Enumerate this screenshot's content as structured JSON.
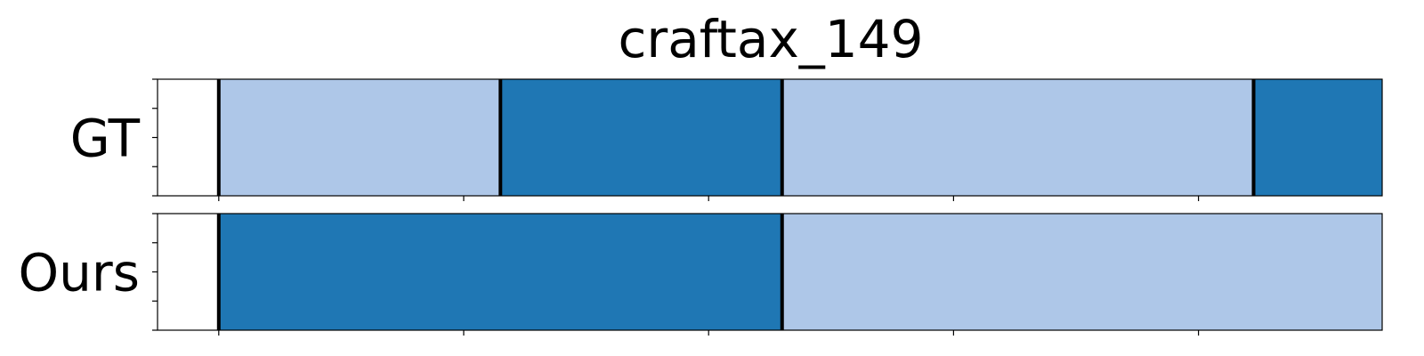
{
  "chart_data": {
    "type": "segmentation-timeline",
    "title": "craftax_149",
    "xlim": [
      0,
      100
    ],
    "ylim": [
      0,
      1
    ],
    "x_ticks": [
      5,
      25,
      45,
      65,
      85,
      105
    ],
    "y_ticks": [
      0,
      0.25,
      0.5,
      0.75,
      1
    ],
    "colors": {
      "light": "#aec7e8",
      "dark": "#1f77b4",
      "boundary": "#000000"
    },
    "rows": [
      {
        "label": "GT",
        "segments": [
          {
            "start": 5,
            "end": 28,
            "class": "light"
          },
          {
            "start": 28,
            "end": 51,
            "class": "dark"
          },
          {
            "start": 51,
            "end": 89.5,
            "class": "light"
          },
          {
            "start": 89.5,
            "end": 105,
            "class": "dark"
          }
        ]
      },
      {
        "label": "Ours",
        "segments": [
          {
            "start": 5,
            "end": 51,
            "class": "dark"
          },
          {
            "start": 51,
            "end": 105,
            "class": "light"
          }
        ]
      }
    ]
  }
}
